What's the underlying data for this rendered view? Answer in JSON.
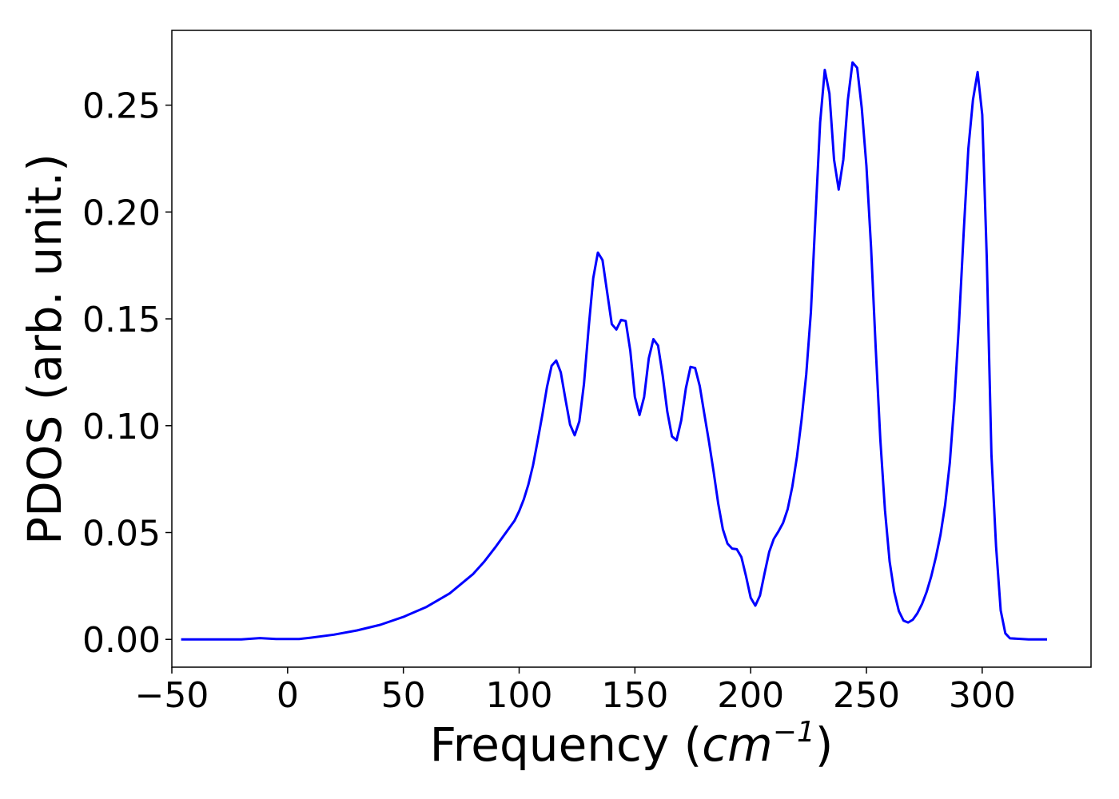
{
  "chart_data": {
    "type": "line",
    "title": "",
    "xlabel_main": "Frequency (",
    "xlabel_unit": "cm",
    "xlabel_sup": "−1",
    "xlabel_close": ")",
    "ylabel": "PDOS (arb. unit.)",
    "xlim": [
      -50,
      347
    ],
    "ylim": [
      -0.013,
      0.285
    ],
    "xticks": [
      -50,
      0,
      50,
      100,
      150,
      200,
      250,
      300
    ],
    "xtick_labels": [
      "−50",
      "0",
      "50",
      "100",
      "150",
      "200",
      "250",
      "300"
    ],
    "yticks": [
      0,
      0.05,
      0.1,
      0.15,
      0.2,
      0.25
    ],
    "ytick_labels": [
      "0.00",
      "0.05",
      "0.10",
      "0.15",
      "0.20",
      "0.25"
    ],
    "grid": false,
    "line_color": "#0000ff",
    "series": [
      {
        "x": [
          -46,
          -20,
          -12,
          -5,
          5,
          10,
          20,
          30,
          40,
          50,
          60,
          70,
          80,
          85,
          90,
          95,
          98,
          100,
          102,
          104,
          106,
          108,
          110,
          112,
          114,
          116,
          118,
          120,
          122,
          124,
          126,
          128,
          130,
          132,
          134,
          136,
          138,
          140,
          142,
          144,
          146,
          148,
          150,
          152,
          154,
          156,
          158,
          160,
          162,
          164,
          166,
          168,
          170,
          172,
          174,
          176,
          178,
          180,
          182,
          184,
          186,
          188,
          190,
          192,
          194,
          196,
          198,
          200,
          202,
          204,
          206,
          208,
          210,
          212,
          214,
          216,
          218,
          220,
          222,
          224,
          226,
          228,
          230,
          232,
          234,
          236,
          238,
          240,
          242,
          244,
          246,
          248,
          250,
          252,
          254,
          256,
          258,
          260,
          262,
          264,
          266,
          268,
          270,
          272,
          274,
          276,
          278,
          280,
          282,
          284,
          286,
          288,
          290,
          292,
          294,
          296,
          298,
          300,
          302,
          304,
          306,
          308,
          310,
          312,
          320,
          328
        ],
        "y": [
          0,
          0,
          0.0006,
          0.0002,
          0.0002,
          0.0008,
          0.0022,
          0.0042,
          0.0068,
          0.0105,
          0.0152,
          0.0215,
          0.0305,
          0.0365,
          0.0435,
          0.051,
          0.0555,
          0.06,
          0.0655,
          0.0725,
          0.0815,
          0.093,
          0.105,
          0.118,
          0.128,
          0.1305,
          0.125,
          0.1125,
          0.1005,
          0.0955,
          0.102,
          0.1195,
          0.1455,
          0.169,
          0.181,
          0.1775,
          0.1625,
          0.1475,
          0.145,
          0.1495,
          0.149,
          0.135,
          0.1135,
          0.105,
          0.1135,
          0.1315,
          0.1405,
          0.1375,
          0.1235,
          0.1065,
          0.095,
          0.0932,
          0.1025,
          0.1175,
          0.1275,
          0.127,
          0.1185,
          0.1055,
          0.0925,
          0.0785,
          0.0635,
          0.0515,
          0.0448,
          0.0425,
          0.0422,
          0.0385,
          0.0295,
          0.0195,
          0.0158,
          0.0205,
          0.031,
          0.041,
          0.047,
          0.0505,
          0.0545,
          0.061,
          0.0715,
          0.0855,
          0.103,
          0.124,
          0.153,
          0.198,
          0.242,
          0.2665,
          0.2555,
          0.2245,
          0.2105,
          0.2245,
          0.2525,
          0.27,
          0.2675,
          0.2485,
          0.2215,
          0.1835,
          0.1365,
          0.0935,
          0.0605,
          0.0365,
          0.0222,
          0.0132,
          0.0088,
          0.0079,
          0.0092,
          0.0122,
          0.0165,
          0.0222,
          0.0295,
          0.0385,
          0.049,
          0.063,
          0.0825,
          0.1115,
          0.1485,
          0.1905,
          0.2295,
          0.2525,
          0.2655,
          0.2455,
          0.178,
          0.0865,
          0.0435,
          0.0135,
          0.0028,
          0.0005,
          0.0,
          0.0
        ]
      }
    ]
  }
}
